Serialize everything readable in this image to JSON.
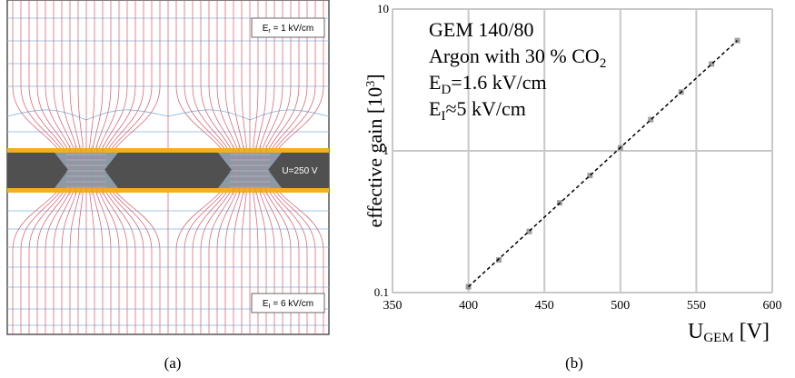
{
  "panel_a": {
    "top_label": {
      "text": "E",
      "sub": "r",
      "rest": " = 1 kV/cm"
    },
    "bottom_label": {
      "text": "E",
      "sub": "I",
      "rest": " = 6 kV/cm"
    },
    "voltage_label": "U=250 V"
  },
  "captions": [
    "(a)",
    "(b)"
  ],
  "chart_data": {
    "type": "line",
    "xlabel": {
      "text": "U",
      "sub": "GEM",
      "rest": " [V]"
    },
    "ylabel": {
      "text": "effective gain [10",
      "sup": "3",
      "rest": "]"
    },
    "annotations": [
      {
        "text": "GEM 140/80"
      },
      {
        "text": "Argon with 30 % CO",
        "sub": "2"
      },
      {
        "text": "E",
        "sub": "D",
        "rest": "=1.6 kV/cm"
      },
      {
        "text": "E",
        "sub": "I",
        "rest": "≈5 kV/cm"
      }
    ],
    "x": [
      400,
      420,
      440,
      460,
      480,
      500,
      520,
      540,
      560,
      577
    ],
    "values": [
      0.11,
      0.17,
      0.27,
      0.43,
      0.67,
      1.05,
      1.66,
      2.6,
      4.1,
      6.0
    ],
    "color": "#777777",
    "fit": {
      "x": [
        400,
        577
      ],
      "values": [
        0.11,
        6.0
      ],
      "color": "#000000"
    },
    "xlim": [
      350,
      600
    ],
    "xticks": [
      350,
      400,
      450,
      500,
      550,
      600
    ],
    "ylim": [
      0.1,
      10
    ],
    "yticks": [
      0.1,
      1,
      10
    ],
    "yscale": "log",
    "grid": true
  }
}
